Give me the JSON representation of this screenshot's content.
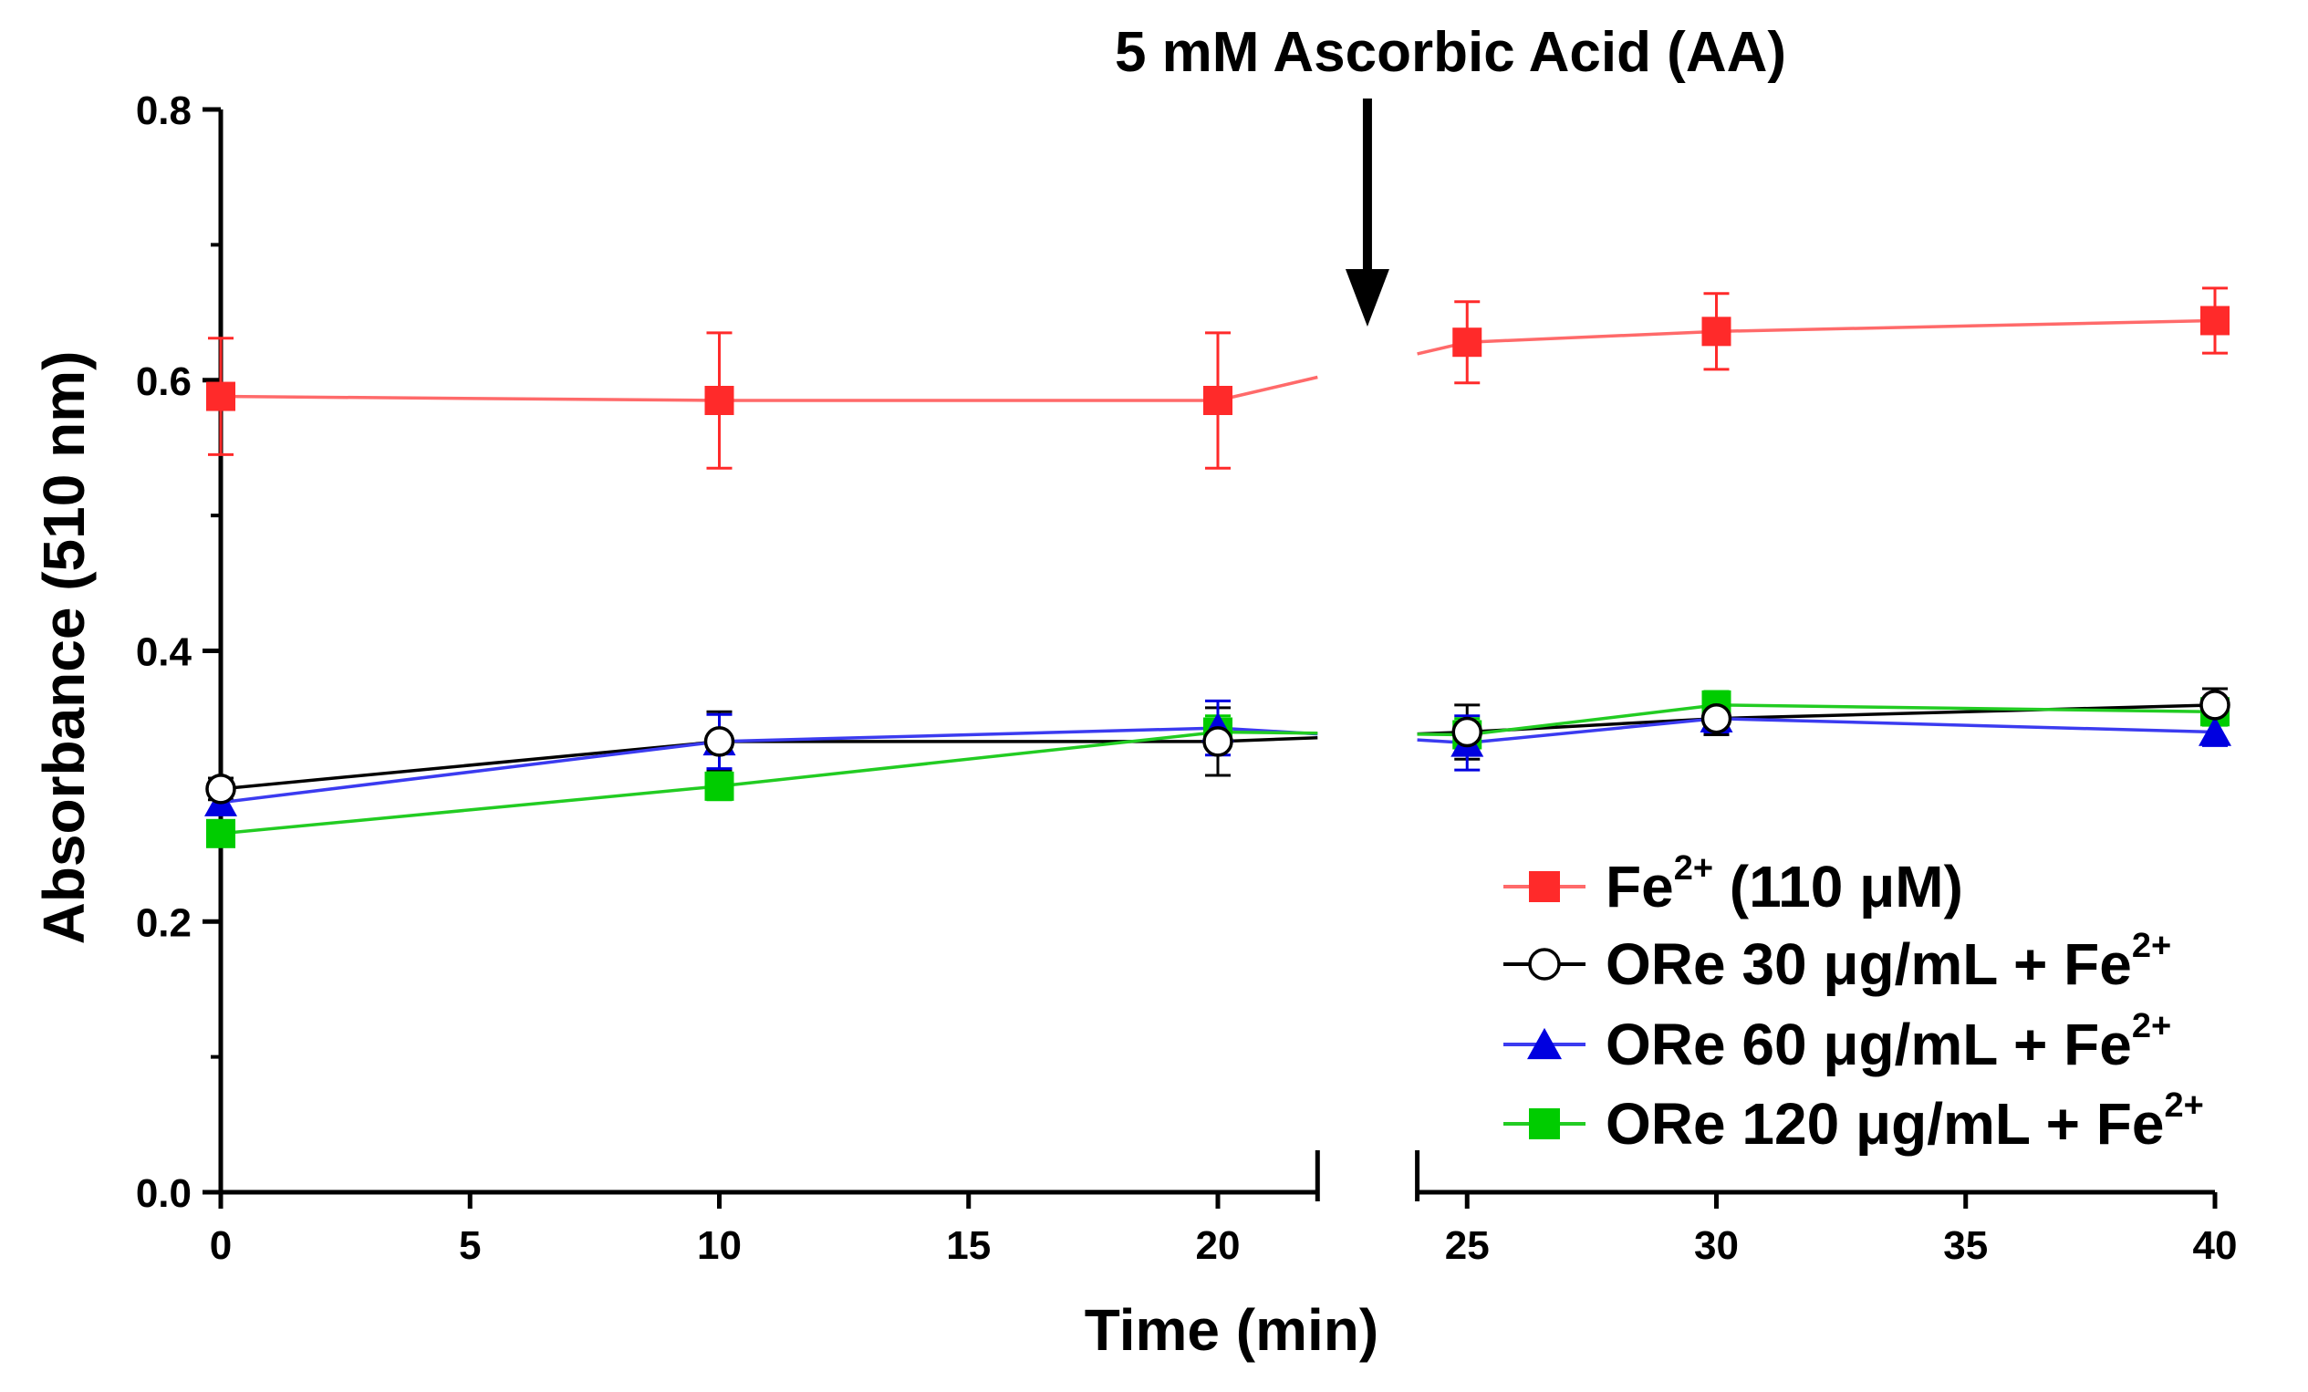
{
  "chart_data": {
    "type": "line",
    "title": "",
    "xlabel": "Time (min)",
    "ylabel": "Absorbance (510 nm)",
    "xlim": [
      0,
      40
    ],
    "ylim": [
      0,
      0.8
    ],
    "xticks": [
      0,
      5,
      10,
      15,
      20,
      25,
      30,
      35,
      40
    ],
    "yticks": [
      0.0,
      0.2,
      0.4,
      0.6,
      0.8
    ],
    "x_tick_labels": [
      "0",
      "5",
      "10",
      "15",
      "20",
      "25",
      "30",
      "35",
      "40"
    ],
    "y_tick_labels": [
      "0.0",
      "0.2",
      "0.4",
      "0.6",
      "0.8"
    ],
    "axis_break": [
      22,
      24
    ],
    "grid": false,
    "legend_position": "bottom-right",
    "annotation": {
      "text": "5 mM Ascorbic Acid (AA)",
      "x": 23
    },
    "series": [
      {
        "name": "Fe2+ (110 µM)",
        "label_parts": [
          "Fe",
          "2+",
          "  (110 μM)"
        ],
        "color": "#ff2a2a",
        "line_color": "#ff6a6a",
        "marker": "square",
        "x": [
          0,
          10,
          20,
          25,
          30,
          40
        ],
        "y": [
          0.588,
          0.585,
          0.585,
          0.628,
          0.636,
          0.644
        ],
        "err": [
          0.043,
          0.05,
          0.05,
          0.03,
          0.028,
          0.024
        ]
      },
      {
        "name": "ORe 30 µg/mL + Fe2+",
        "label_parts": [
          "ORe 30 μg/mL + Fe",
          "2+"
        ],
        "color": "#000000",
        "line_color": "#000000",
        "marker": "circle-open",
        "x": [
          0,
          10,
          20,
          25,
          30,
          40
        ],
        "y": [
          0.298,
          0.333,
          0.333,
          0.34,
          0.35,
          0.36
        ],
        "err": [
          0.008,
          0.022,
          0.025,
          0.02,
          0.012,
          0.012
        ]
      },
      {
        "name": "ORe 60 µg/mL + Fe2+",
        "label_parts": [
          "ORe 60 μg/mL + Fe",
          "2+"
        ],
        "color": "#0000e0",
        "line_color": "#3b3bf0",
        "marker": "triangle",
        "x": [
          0,
          10,
          20,
          25,
          30,
          40
        ],
        "y": [
          0.288,
          0.333,
          0.343,
          0.332,
          0.35,
          0.34
        ],
        "err": [
          0.008,
          0.02,
          0.02,
          0.02,
          0.01,
          0.01
        ]
      },
      {
        "name": "ORe 120 µg/mL + Fe2+",
        "label_parts": [
          "ORe 120 μg/mL + Fe",
          "2+"
        ],
        "color": "#00cc00",
        "line_color": "#22cc22",
        "marker": "square",
        "x": [
          0,
          10,
          20,
          25,
          30,
          40
        ],
        "y": [
          0.265,
          0.3,
          0.34,
          0.338,
          0.36,
          0.355
        ],
        "err": [
          0.008,
          0.01,
          0.012,
          0.012,
          0.01,
          0.01
        ]
      }
    ]
  }
}
